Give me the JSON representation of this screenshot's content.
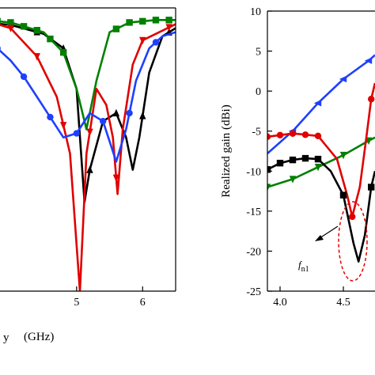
{
  "chart_data": [
    {
      "type": "line",
      "panel": "left",
      "xlabel_partial": "y",
      "xunit": "(GHz)",
      "xlim": [
        3.6,
        6.5
      ],
      "ylim": [
        -35,
        0
      ],
      "x_ticks": [
        5,
        6
      ],
      "x_tick_labels": [
        "5",
        "6"
      ],
      "grid": false,
      "series": [
        {
          "color": "#000000",
          "marker": "triangle-up",
          "points": [
            [
              3.6,
              -1.8
            ],
            [
              4.0,
              -2.1
            ],
            [
              4.5,
              -3.2
            ],
            [
              4.8,
              -5.0
            ],
            [
              5.0,
              -10.0
            ],
            [
              5.12,
              -24.0
            ],
            [
              5.2,
              -20.0
            ],
            [
              5.4,
              -14.0
            ],
            [
              5.6,
              -13.0
            ],
            [
              5.75,
              -16.0
            ],
            [
              5.85,
              -20.0
            ],
            [
              5.95,
              -16.0
            ],
            [
              6.1,
              -8.0
            ],
            [
              6.3,
              -3.5
            ],
            [
              6.5,
              -2.5
            ]
          ],
          "marker_x": [
            3.6,
            4.0,
            4.4,
            4.8,
            5.2,
            5.6,
            6.0,
            6.4
          ]
        },
        {
          "color": "#008000",
          "marker": "square",
          "points": [
            [
              3.6,
              -1.5
            ],
            [
              4.0,
              -1.8
            ],
            [
              4.5,
              -3.0
            ],
            [
              4.8,
              -5.5
            ],
            [
              5.0,
              -10.0
            ],
            [
              5.15,
              -15.0
            ],
            [
              5.3,
              -9.0
            ],
            [
              5.5,
              -3.0
            ],
            [
              5.8,
              -1.8
            ],
            [
              6.2,
              -1.5
            ],
            [
              6.5,
              -1.5
            ]
          ],
          "marker_x": [
            3.6,
            3.8,
            4.0,
            4.2,
            4.4,
            4.6,
            4.8,
            5.6,
            5.8,
            6.0,
            6.2,
            6.4
          ]
        },
        {
          "color": "#e00000",
          "marker": "triangle-down",
          "points": [
            [
              3.6,
              -1.5
            ],
            [
              4.0,
              -2.5
            ],
            [
              4.4,
              -6.0
            ],
            [
              4.7,
              -11.0
            ],
            [
              4.9,
              -18.0
            ],
            [
              5.05,
              -35.0
            ],
            [
              5.15,
              -18.0
            ],
            [
              5.3,
              -10.0
            ],
            [
              5.45,
              -12.0
            ],
            [
              5.55,
              -16.0
            ],
            [
              5.62,
              -23.0
            ],
            [
              5.7,
              -15.0
            ],
            [
              5.85,
              -7.0
            ],
            [
              6.0,
              -4.0
            ],
            [
              6.5,
              -2.0
            ]
          ],
          "marker_x": [
            3.6,
            4.0,
            4.4,
            4.8,
            5.2,
            5.6,
            6.0,
            6.4
          ]
        },
        {
          "color": "#1f3fff",
          "marker": "circle",
          "points": [
            [
              3.6,
              -4.5
            ],
            [
              3.8,
              -5.0
            ],
            [
              4.0,
              -6.5
            ],
            [
              4.2,
              -8.5
            ],
            [
              4.4,
              -11.0
            ],
            [
              4.6,
              -13.5
            ],
            [
              4.8,
              -16.0
            ],
            [
              5.0,
              -15.5
            ],
            [
              5.2,
              -13.0
            ],
            [
              5.4,
              -14.0
            ],
            [
              5.6,
              -19.0
            ],
            [
              5.75,
              -15.0
            ],
            [
              5.9,
              -9.0
            ],
            [
              6.1,
              -5.0
            ],
            [
              6.3,
              -3.5
            ],
            [
              6.5,
              -3.0
            ]
          ],
          "marker_x": [
            3.8,
            4.2,
            4.6,
            5.0,
            5.4,
            5.8,
            6.2
          ]
        }
      ]
    },
    {
      "type": "line",
      "panel": "right",
      "ylabel": "Realized gain (dBi)",
      "xlim": [
        3.9,
        4.75
      ],
      "ylim": [
        -25,
        10
      ],
      "x_ticks": [
        4.0,
        4.5
      ],
      "x_tick_labels": [
        "4.0",
        "4.5"
      ],
      "y_ticks": [
        10,
        5,
        0,
        -5,
        -10,
        -15,
        -20,
        -25
      ],
      "y_tick_labels": [
        "10",
        "5",
        "0",
        "-5",
        "-10",
        "-15",
        "-20",
        "-25"
      ],
      "grid": false,
      "annotation": {
        "base": "f",
        "sub": "n1",
        "ellipse_center": [
          4.57,
          -17.5
        ]
      },
      "series": [
        {
          "color": "#1f3fff",
          "marker": "triangle-left",
          "points": [
            [
              3.9,
              -7.8
            ],
            [
              4.1,
              -5.0
            ],
            [
              4.3,
              -1.5
            ],
            [
              4.5,
              1.5
            ],
            [
              4.7,
              3.8
            ],
            [
              4.75,
              4.5
            ]
          ],
          "marker_x": [
            4.1,
            4.3,
            4.5,
            4.7
          ]
        },
        {
          "color": "#008000",
          "marker": "triangle-down",
          "points": [
            [
              3.9,
              -12.0
            ],
            [
              4.1,
              -11.0
            ],
            [
              4.3,
              -9.5
            ],
            [
              4.5,
              -8.0
            ],
            [
              4.7,
              -6.2
            ],
            [
              4.75,
              -5.8
            ]
          ],
          "marker_x": [
            3.9,
            4.1,
            4.3,
            4.5,
            4.7
          ]
        },
        {
          "color": "#e00000",
          "marker": "circle",
          "points": [
            [
              3.9,
              -5.7
            ],
            [
              4.0,
              -5.5
            ],
            [
              4.1,
              -5.3
            ],
            [
              4.3,
              -5.6
            ],
            [
              4.45,
              -8.5
            ],
            [
              4.53,
              -13.0
            ],
            [
              4.57,
              -15.7
            ],
            [
              4.63,
              -12.0
            ],
            [
              4.68,
              -6.0
            ],
            [
              4.72,
              -1.0
            ],
            [
              4.75,
              1.0
            ]
          ],
          "marker_x": [
            3.9,
            4.0,
            4.1,
            4.2,
            4.3,
            4.57,
            4.72
          ]
        },
        {
          "color": "#000000",
          "marker": "square",
          "points": [
            [
              3.9,
              -9.8
            ],
            [
              4.0,
              -9.0
            ],
            [
              4.1,
              -8.6
            ],
            [
              4.2,
              -8.4
            ],
            [
              4.3,
              -8.5
            ],
            [
              4.4,
              -10.0
            ],
            [
              4.5,
              -13.0
            ],
            [
              4.58,
              -19.0
            ],
            [
              4.62,
              -21.3
            ],
            [
              4.67,
              -18.0
            ],
            [
              4.72,
              -12.0
            ],
            [
              4.75,
              -10.0
            ]
          ],
          "marker_x": [
            3.9,
            4.0,
            4.1,
            4.2,
            4.3,
            4.5,
            4.72
          ]
        }
      ]
    }
  ]
}
